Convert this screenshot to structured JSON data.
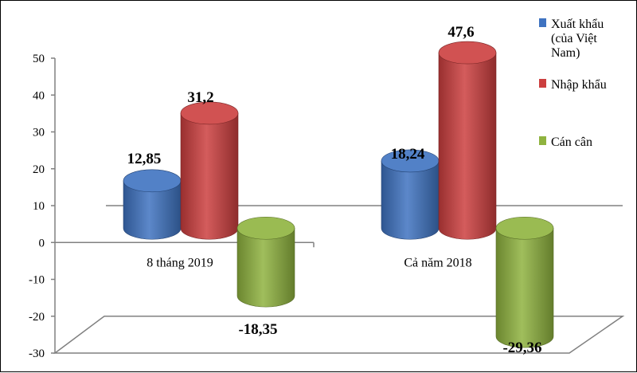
{
  "chart_data": {
    "type": "bar",
    "style": "3d-cylinder",
    "categories": [
      "8 tháng 2019",
      "Cả năm 2018"
    ],
    "series": [
      {
        "name": "Xuất khẩu (của Việt Nam)",
        "legend_lines": [
          "Xuất khẩu",
          "(của Việt",
          "Nam)"
        ],
        "color": "#3f73c1",
        "values": [
          12.85,
          18.24
        ],
        "labels": [
          "12,85",
          "18,24"
        ]
      },
      {
        "name": "Nhập khẩu",
        "legend_lines": [
          "Nhập khẩu"
        ],
        "color": "#cc3f3f",
        "values": [
          31.2,
          47.6
        ],
        "labels": [
          "31,2",
          "47,6"
        ]
      },
      {
        "name": "Cán cân",
        "legend_lines": [
          "Cán cân"
        ],
        "color": "#8fb33f",
        "values": [
          -18.35,
          -29.36
        ],
        "labels": [
          "-18,35",
          "-29,36"
        ]
      }
    ],
    "yticks": [
      "50",
      "40",
      "30",
      "20",
      "10",
      "0",
      "-10",
      "-20",
      "-30"
    ],
    "ylim": [
      -30,
      50
    ],
    "grid": false,
    "legend": "right"
  }
}
